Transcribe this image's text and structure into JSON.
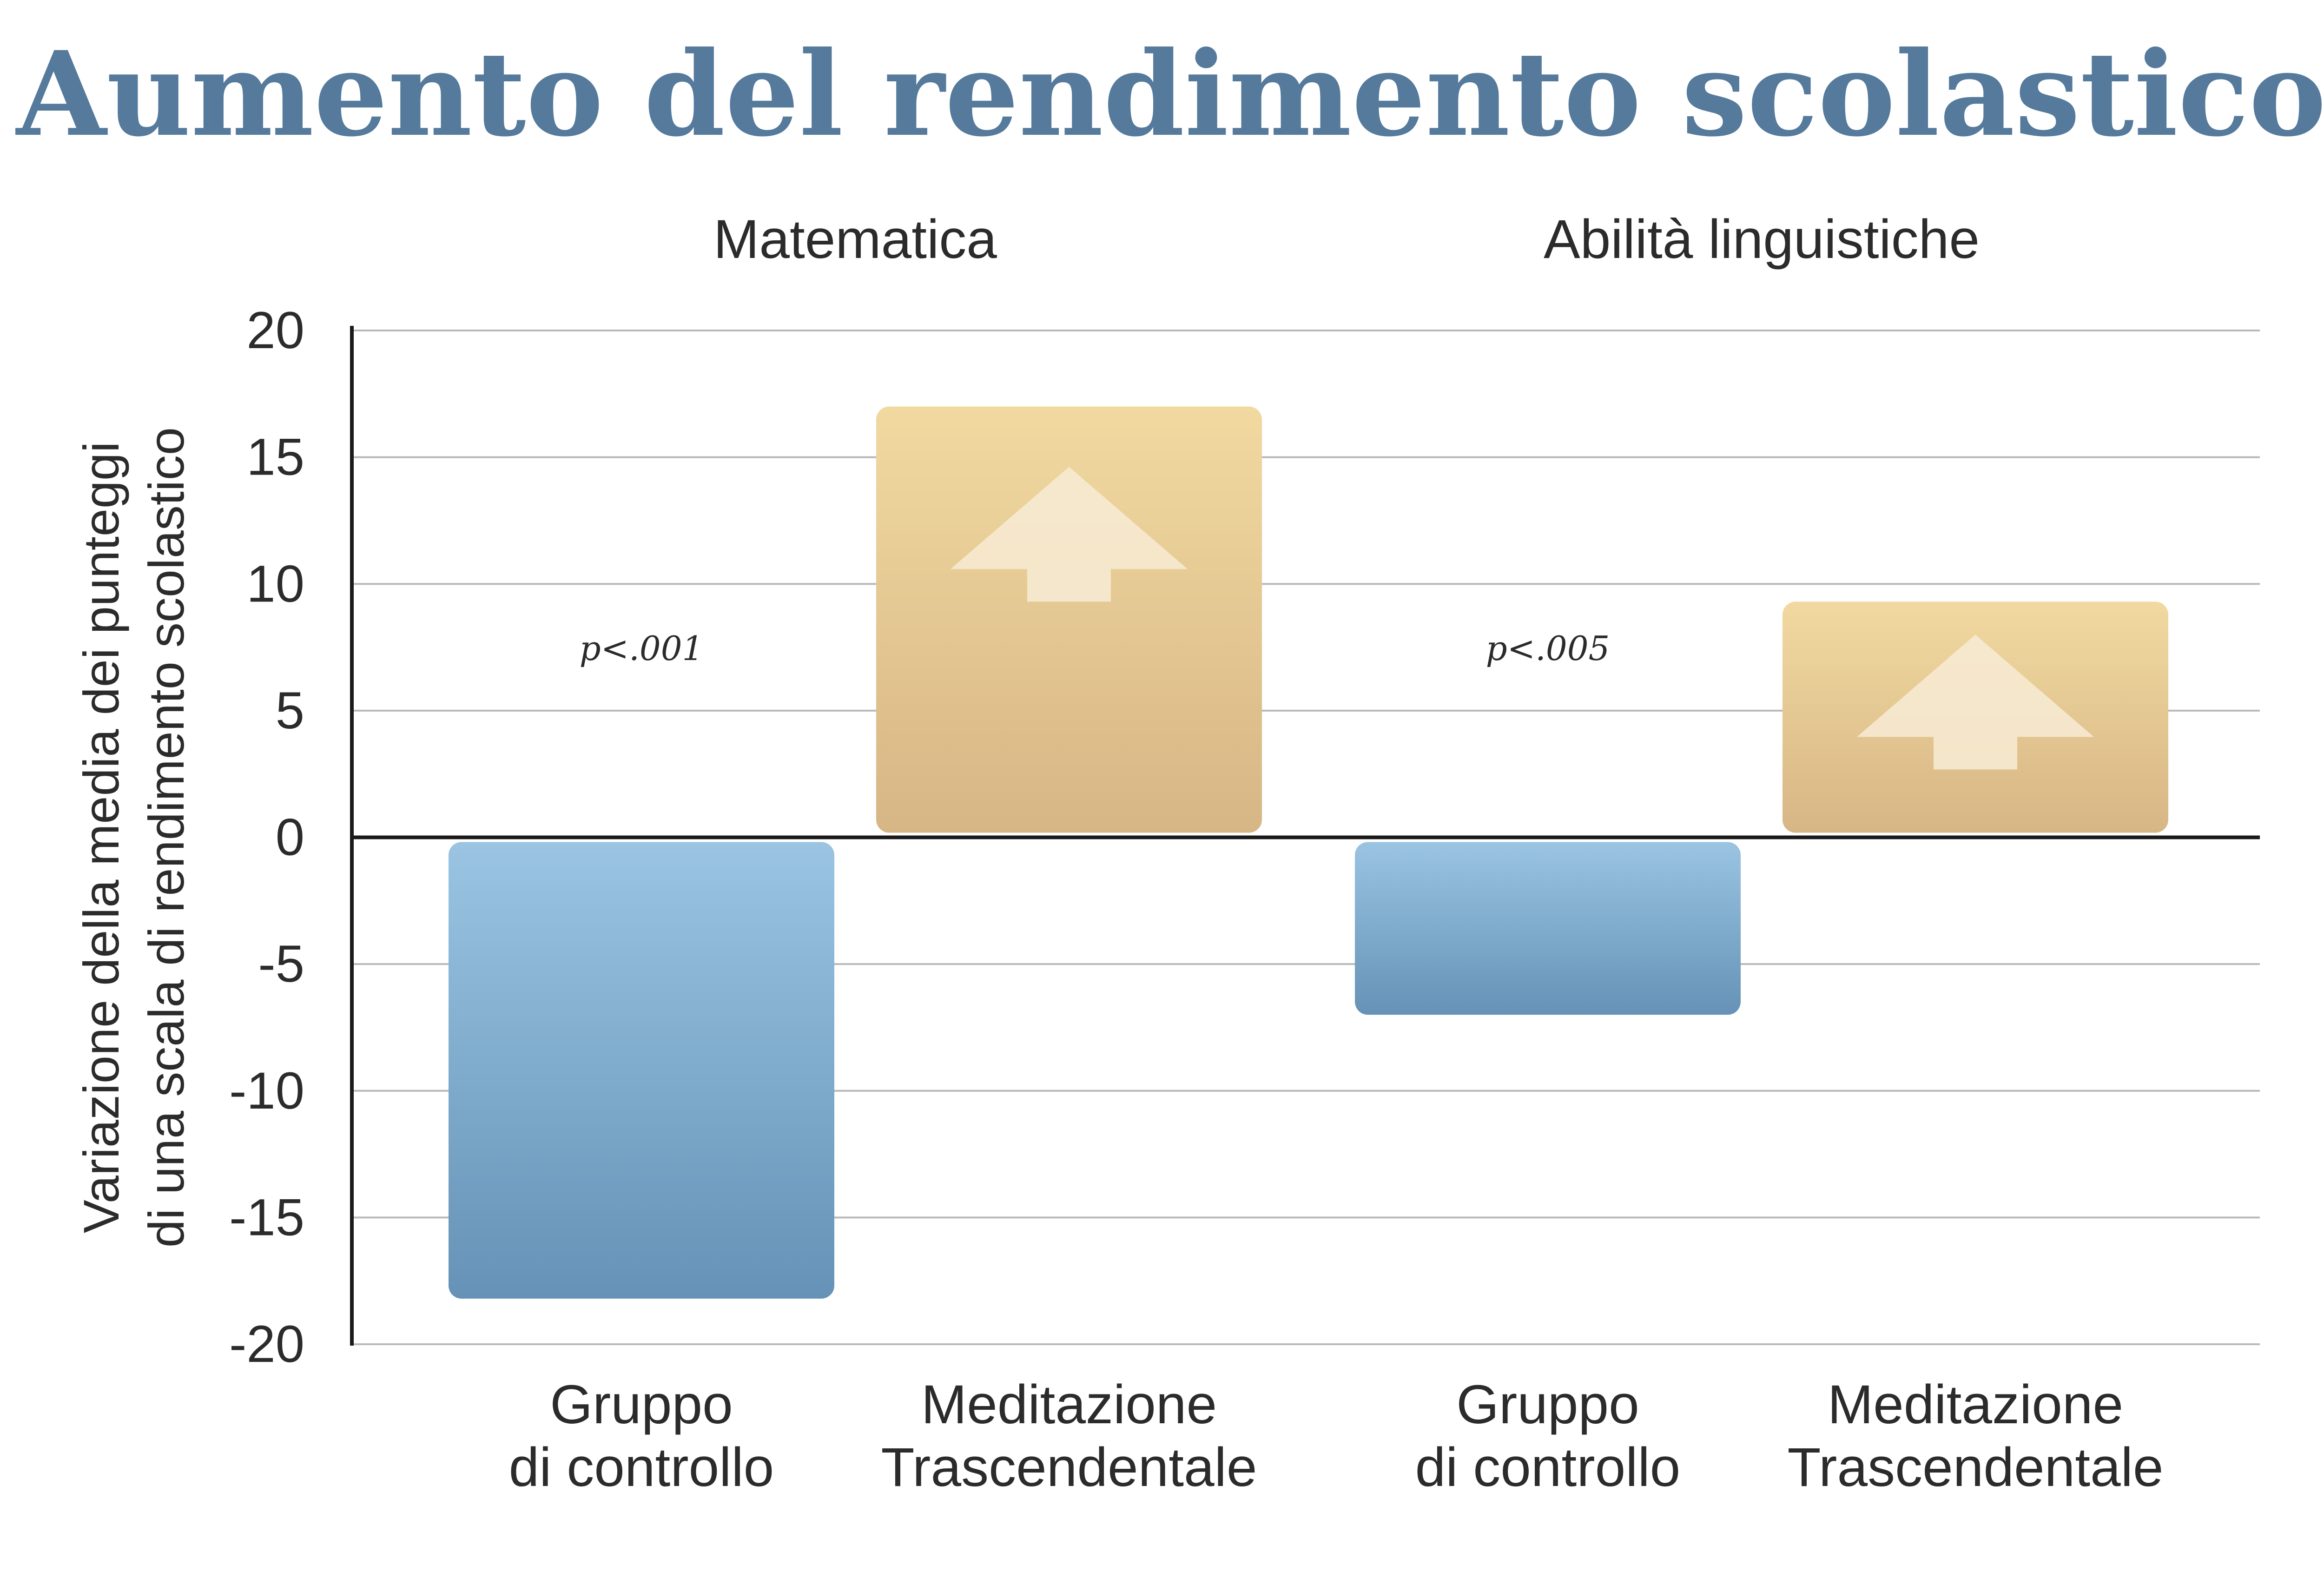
{
  "title": "Aumento del rendimento scolastico",
  "colors": {
    "title": "#557a9c",
    "tm_top": "#f1d9a0",
    "tm_bottom": "#d7b685",
    "control_top": "#9ac4e2",
    "control_bottom": "#6592b6",
    "arrow": "#f7ead3",
    "grid": "#b8b8b8",
    "axis": "#1a1a1a",
    "text": "#2b2b2b"
  },
  "chart_data": {
    "type": "bar",
    "title": "Aumento del rendimento scolastico",
    "ylabel": "Variazione della media dei punteggi di una scala di rendimento scolastico",
    "ylabel_lines": [
      "Variazione della media dei punteggi",
      "di una scala di rendimento scolastico"
    ],
    "xlabel": "",
    "ylim": [
      -20,
      20
    ],
    "yticks": [
      20,
      15,
      10,
      5,
      0,
      -5,
      -10,
      -15,
      -20
    ],
    "grid": true,
    "groups": [
      {
        "name": "Matematica",
        "p_value": "p<.001",
        "bars": [
          {
            "label_lines": [
              "Gruppo",
              "di controllo"
            ],
            "value": -18.2,
            "kind": "control"
          },
          {
            "label_lines": [
              "Meditazione",
              "Trascendentale"
            ],
            "value": 17.0,
            "kind": "tm"
          }
        ]
      },
      {
        "name": "Abilità linguistiche",
        "p_value": "p<.005",
        "bars": [
          {
            "label_lines": [
              "Gruppo",
              "di controllo"
            ],
            "value": -7.0,
            "kind": "control"
          },
          {
            "label_lines": [
              "Meditazione",
              "Trascendentale"
            ],
            "value": 9.3,
            "kind": "tm"
          }
        ]
      }
    ]
  }
}
